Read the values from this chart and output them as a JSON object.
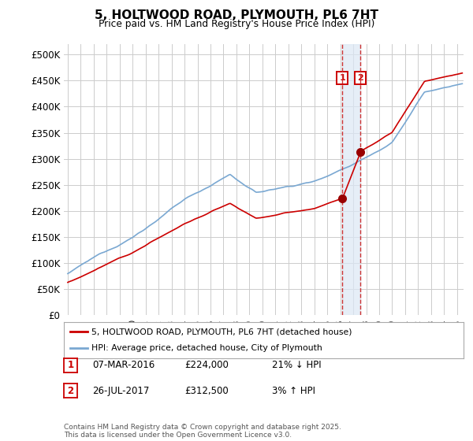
{
  "title": "5, HOLTWOOD ROAD, PLYMOUTH, PL6 7HT",
  "subtitle": "Price paid vs. HM Land Registry's House Price Index (HPI)",
  "ylim": [
    0,
    520000
  ],
  "yticks": [
    0,
    50000,
    100000,
    150000,
    200000,
    250000,
    300000,
    350000,
    400000,
    450000,
    500000
  ],
  "xlim_start": 1994.7,
  "xlim_end": 2025.5,
  "background_color": "#ffffff",
  "plot_bg_color": "#ffffff",
  "grid_color": "#cccccc",
  "transaction1_x": 2016.17,
  "transaction1_y": 224000,
  "transaction2_x": 2017.56,
  "transaction2_y": 312500,
  "legend_label_red": "5, HOLTWOOD ROAD, PLYMOUTH, PL6 7HT (detached house)",
  "legend_label_blue": "HPI: Average price, detached house, City of Plymouth",
  "footer": "Contains HM Land Registry data © Crown copyright and database right 2025.\nThis data is licensed under the Open Government Licence v3.0.",
  "red_color": "#cc0000",
  "blue_color": "#7aa8d2",
  "vline_color": "#cc3333",
  "shadow_color": "#dce8f5",
  "box_edge_color": "#cc0000",
  "marker_dot_color": "#990000"
}
